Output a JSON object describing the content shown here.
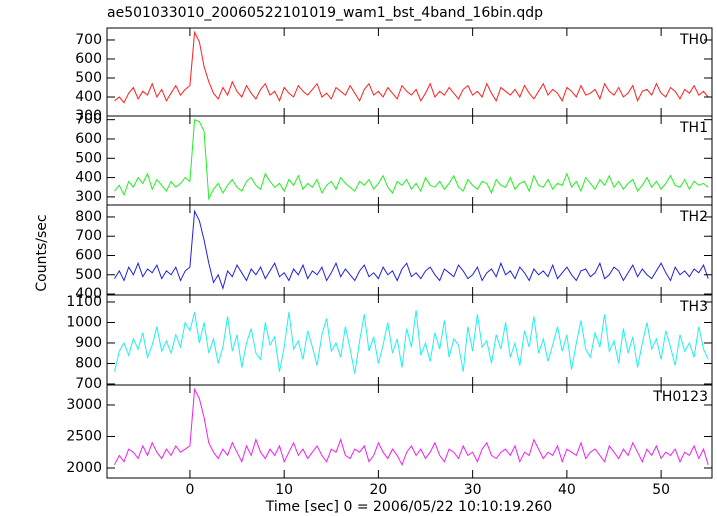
{
  "chart_data": {
    "type": "line",
    "title": "ae501033010_20060522101019_wam1_bst_4band_16bin.qdp",
    "xlabel": "Time [sec] 0 = 2006/05/22 10:10:19.260",
    "ylabel": "Counts/sec",
    "xlim": [
      -8.8,
      55.4
    ],
    "xticks": [
      0,
      10,
      20,
      30,
      40,
      50
    ],
    "x": [
      -8,
      -7.5,
      -7,
      -6.5,
      -6,
      -5.5,
      -5,
      -4.5,
      -4,
      -3.5,
      -3,
      -2.5,
      -2,
      -1.5,
      -1,
      -0.5,
      0,
      0.5,
      1,
      1.5,
      2,
      2.5,
      3,
      3.5,
      4,
      4.5,
      5,
      5.5,
      6,
      6.5,
      7,
      7.5,
      8,
      8.5,
      9,
      9.5,
      10,
      10.5,
      11,
      11.5,
      12,
      12.5,
      13,
      13.5,
      14,
      14.5,
      15,
      15.5,
      16,
      16.5,
      17,
      17.5,
      18,
      18.5,
      19,
      19.5,
      20,
      20.5,
      21,
      21.5,
      22,
      22.5,
      23,
      23.5,
      24,
      24.5,
      25,
      25.5,
      26,
      26.5,
      27,
      27.5,
      28,
      28.5,
      29,
      29.5,
      30,
      30.5,
      31,
      31.5,
      32,
      32.5,
      33,
      33.5,
      34,
      34.5,
      35,
      35.5,
      36,
      36.5,
      37,
      37.5,
      38,
      38.5,
      39,
      39.5,
      40,
      40.5,
      41,
      41.5,
      42,
      42.5,
      43,
      43.5,
      44,
      44.5,
      45,
      45.5,
      46,
      46.5,
      47,
      47.5,
      48,
      48.5,
      49,
      49.5,
      50,
      50.5,
      51,
      51.5,
      52,
      52.5,
      53,
      53.5,
      54,
      54.5,
      55
    ],
    "series": [
      {
        "name": "TH0",
        "color": "#ff2020",
        "ylim": [
          300,
          763
        ],
        "yticks": [
          300,
          400,
          500,
          600,
          700
        ],
        "values": [
          380,
          400,
          370,
          420,
          450,
          390,
          430,
          410,
          470,
          400,
          440,
          380,
          420,
          460,
          410,
          440,
          460,
          740,
          690,
          560,
          480,
          420,
          390,
          450,
          410,
          480,
          430,
          400,
          460,
          420,
          390,
          440,
          470,
          410,
          430,
          380,
          450,
          420,
          400,
          460,
          430,
          410,
          440,
          470,
          400,
          420,
          390,
          450,
          430,
          410,
          460,
          420,
          380,
          440,
          470,
          410,
          430,
          400,
          450,
          420,
          390,
          460,
          430,
          410,
          440,
          380,
          420,
          470,
          400,
          430,
          410,
          450,
          420,
          390,
          440,
          460,
          410,
          430,
          400,
          470,
          420,
          380,
          450,
          430,
          410,
          440,
          400,
          460,
          420,
          390,
          430,
          470,
          410,
          440,
          420,
          380,
          450,
          430,
          400,
          460,
          410,
          420,
          440,
          390,
          470,
          430,
          410,
          450,
          400,
          420,
          460,
          380,
          430,
          440,
          410,
          470,
          420,
          400,
          450,
          430,
          390,
          440,
          420,
          460,
          410,
          430,
          400
        ]
      },
      {
        "name": "TH1",
        "color": "#20f020",
        "ylim": [
          258,
          719
        ],
        "yticks": [
          300,
          400,
          500,
          600,
          700
        ],
        "values": [
          330,
          360,
          310,
          380,
          350,
          400,
          370,
          420,
          340,
          390,
          360,
          330,
          380,
          350,
          370,
          400,
          380,
          700,
          690,
          640,
          290,
          340,
          370,
          320,
          360,
          390,
          350,
          330,
          380,
          400,
          360,
          340,
          420,
          380,
          350,
          370,
          330,
          390,
          360,
          410,
          340,
          370,
          350,
          390,
          320,
          360,
          380,
          340,
          400,
          370,
          350,
          330,
          380,
          360,
          390,
          340,
          370,
          410,
          350,
          320,
          380,
          360,
          390,
          340,
          370,
          330,
          400,
          360,
          350,
          380,
          340,
          370,
          410,
          350,
          330,
          390,
          360,
          340,
          380,
          370,
          320,
          390,
          360,
          350,
          400,
          340,
          370,
          380,
          330,
          410,
          360,
          350,
          390,
          340,
          370,
          360,
          420,
          350,
          380,
          330,
          400,
          370,
          340,
          390,
          360,
          410,
          350,
          380,
          340,
          370,
          390,
          330,
          360,
          400,
          350,
          380,
          340,
          370,
          410,
          360,
          350,
          390,
          340,
          380,
          360,
          370,
          350
        ]
      },
      {
        "name": "TH2",
        "color": "#2020e0",
        "ylim": [
          395,
          862
        ],
        "yticks": [
          400,
          500,
          600,
          700,
          800
        ],
        "values": [
          480,
          520,
          470,
          540,
          500,
          560,
          490,
          530,
          510,
          550,
          480,
          520,
          500,
          540,
          470,
          520,
          540,
          830,
          780,
          680,
          560,
          460,
          500,
          430,
          520,
          490,
          550,
          510,
          470,
          530,
          500,
          540,
          480,
          520,
          560,
          490,
          510,
          470,
          530,
          500,
          550,
          480,
          520,
          500,
          540,
          470,
          510,
          560,
          490,
          530,
          500,
          470,
          520,
          550,
          490,
          510,
          480,
          540,
          500,
          520,
          470,
          530,
          560,
          490,
          510,
          480,
          520,
          540,
          500,
          470,
          530,
          510,
          490,
          550,
          520,
          480,
          500,
          540,
          470,
          510,
          530,
          490,
          560,
          500,
          520,
          480,
          540,
          510,
          470,
          530,
          500,
          520,
          490,
          550,
          480,
          510,
          540,
          500,
          470,
          520,
          530,
          490,
          510,
          560,
          480,
          500,
          540,
          520,
          470,
          510,
          550,
          490,
          530,
          500,
          480,
          520,
          560,
          510,
          470,
          540,
          500,
          520,
          490,
          530,
          510,
          550,
          480
        ]
      },
      {
        "name": "TH3",
        "color": "#20f0f0",
        "ylim": [
          695,
          1134
        ],
        "yticks": [
          700,
          800,
          900,
          1000,
          1100
        ],
        "values": [
          760,
          860,
          900,
          840,
          920,
          870,
          950,
          830,
          890,
          980,
          860,
          910,
          850,
          940,
          880,
          1000,
          960,
          1050,
          900,
          1000,
          850,
          920,
          800,
          880,
          1030,
          860,
          940,
          780,
          900,
          970,
          850,
          820,
          1000,
          890,
          930,
          760,
          880,
          1050,
          870,
          910,
          820,
          960,
          880,
          790,
          940,
          1020,
          860,
          900,
          830,
          980,
          870,
          750,
          910,
          1040,
          860,
          930,
          800,
          890,
          1000,
          850,
          920,
          780,
          970,
          880,
          1060,
          840,
          900,
          810,
          950,
          870,
          1010,
          830,
          920,
          890,
          760,
          980,
          860,
          1040,
          880,
          910,
          800,
          940,
          870,
          1000,
          830,
          900,
          790,
          960,
          880,
          1030,
          850,
          920,
          810,
          890,
          980,
          860,
          940,
          770,
          900,
          1010,
          870,
          830,
          950,
          880,
          1040,
          860,
          910,
          800,
          970,
          850,
          930,
          780,
          900,
          1000,
          870,
          920,
          820,
          960,
          880,
          790,
          940,
          860,
          900,
          830,
          980,
          870,
          820
        ]
      },
      {
        "name": "TH0123",
        "color": "#f020f0",
        "ylim": [
          1841,
          3317
        ],
        "yticks": [
          2000,
          2500,
          3000
        ],
        "values": [
          2050,
          2200,
          2100,
          2300,
          2250,
          2150,
          2350,
          2200,
          2400,
          2250,
          2150,
          2300,
          2200,
          2350,
          2250,
          2300,
          2350,
          3250,
          3100,
          2800,
          2400,
          2250,
          2150,
          2300,
          2200,
          2400,
          2250,
          2100,
          2350,
          2200,
          2450,
          2250,
          2150,
          2300,
          2200,
          2350,
          2100,
          2250,
          2400,
          2200,
          2300,
          2150,
          2250,
          2350,
          2200,
          2100,
          2300,
          2250,
          2450,
          2200,
          2150,
          2300,
          2250,
          2350,
          2100,
          2200,
          2400,
          2250,
          2150,
          2300,
          2200,
          2050,
          2250,
          2350,
          2200,
          2300,
          2150,
          2250,
          2400,
          2200,
          2100,
          2300,
          2250,
          2150,
          2350,
          2200,
          2250,
          2100,
          2300,
          2400,
          2200,
          2150,
          2250,
          2300,
          2200,
          2350,
          2100,
          2250,
          2200,
          2450,
          2300,
          2150,
          2250,
          2200,
          2350,
          2100,
          2300,
          2250,
          2200,
          2400,
          2150,
          2250,
          2300,
          2200,
          2100,
          2350,
          2250,
          2150,
          2300,
          2200,
          2400,
          2250,
          2100,
          2300,
          2200,
          2350,
          2150,
          2250,
          2200,
          2300,
          2100,
          2250,
          2200,
          2350,
          2150,
          2300,
          2050
        ]
      }
    ]
  }
}
